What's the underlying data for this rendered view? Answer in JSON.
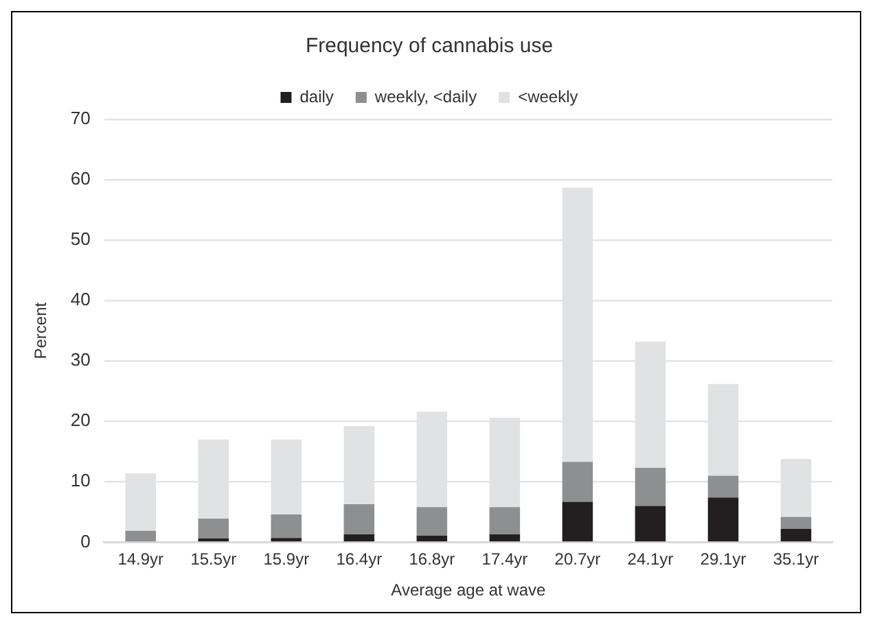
{
  "chart_data": {
    "type": "bar",
    "title": "Frequency of cannabis use",
    "xlabel": "Average age at wave",
    "ylabel": "Percent",
    "categories": [
      "14.9yr",
      "15.5yr",
      "15.9yr",
      "16.4yr",
      "16.8yr",
      "17.4yr",
      "20.7yr",
      "24.1yr",
      "29.1yr",
      "35.1yr"
    ],
    "series": [
      {
        "name": "daily",
        "color": "#231f20",
        "values": [
          null,
          0.6,
          0.7,
          1.3,
          1.1,
          1.3,
          6.7,
          6.0,
          7.4,
          2.2
        ]
      },
      {
        "name": "weekly, <daily",
        "color": "#8e8f91",
        "values": [
          1.9,
          3.3,
          3.9,
          5.0,
          4.7,
          4.5,
          6.6,
          6.3,
          3.6,
          2.0
        ]
      },
      {
        "name": "<weekly",
        "color": "#e1e2e4",
        "values": [
          9.5,
          13.1,
          12.4,
          12.9,
          15.8,
          14.8,
          45.4,
          20.9,
          15.2,
          9.6
        ]
      }
    ],
    "stacked": true,
    "ylim": [
      0,
      70
    ],
    "yticks": [
      0,
      10,
      20,
      30,
      40,
      50,
      60,
      70
    ],
    "grid": "y",
    "legend": "top"
  }
}
